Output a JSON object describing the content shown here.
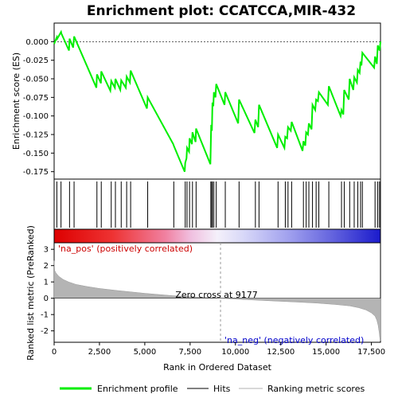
{
  "chart_data": {
    "type": "line",
    "title": "Enrichment plot: CCATCCA,MIR-432",
    "top_panel": {
      "ylabel": "Enrichment score (ES)",
      "ylim": [
        -0.185,
        0.025
      ],
      "yticks": [
        "0.000",
        "-0.025",
        "-0.050",
        "-0.075",
        "-0.100",
        "-0.125",
        "-0.150",
        "-0.175"
      ],
      "ytick_values": [
        0,
        -0.025,
        -0.05,
        -0.075,
        -0.1,
        -0.125,
        -0.15,
        -0.175
      ],
      "series": [
        {
          "name": "Enrichment profile",
          "color": "#00ee00",
          "x": [
            0,
            150,
            170,
            380,
            400,
            820,
            850,
            1050,
            1100,
            2330,
            2360,
            2580,
            2600,
            3100,
            3150,
            3350,
            3380,
            3650,
            3700,
            3950,
            4000,
            4180,
            4220,
            5120,
            5160,
            6570,
            6600,
            7200,
            7230,
            7300,
            7330,
            7440,
            7470,
            7600,
            7630,
            7800,
            7830,
            8620,
            8640,
            8660,
            8700,
            8730,
            8780,
            8810,
            8900,
            8940,
            9400,
            9440,
            10150,
            10200,
            11050,
            11100,
            11250,
            11300,
            12300,
            12350,
            12700,
            12750,
            12850,
            12900,
            13050,
            13100,
            13700,
            13750,
            13850,
            13900,
            14000,
            14050,
            14200,
            14250,
            14400,
            14450,
            14550,
            14600,
            15100,
            15150,
            15800,
            15850,
            15950,
            16000,
            16250,
            16300,
            16500,
            16550,
            16700,
            16750,
            16850,
            16900,
            16950,
            17000,
            17650,
            17700,
            17800,
            17850,
            17950,
            18000
          ],
          "y": [
            -0.003,
            0.006,
            0.004,
            0.013,
            0.011,
            -0.012,
            0.004,
            -0.008,
            0.007,
            -0.062,
            -0.044,
            -0.056,
            -0.04,
            -0.066,
            -0.053,
            -0.062,
            -0.05,
            -0.065,
            -0.052,
            -0.062,
            -0.047,
            -0.055,
            -0.039,
            -0.09,
            -0.075,
            -0.138,
            -0.14,
            -0.175,
            -0.163,
            -0.157,
            -0.143,
            -0.148,
            -0.13,
            -0.138,
            -0.122,
            -0.135,
            -0.117,
            -0.165,
            -0.139,
            -0.112,
            -0.12,
            -0.082,
            -0.087,
            -0.068,
            -0.075,
            -0.057,
            -0.085,
            -0.068,
            -0.11,
            -0.078,
            -0.123,
            -0.105,
            -0.115,
            -0.085,
            -0.143,
            -0.125,
            -0.143,
            -0.128,
            -0.13,
            -0.115,
            -0.12,
            -0.108,
            -0.147,
            -0.134,
            -0.14,
            -0.122,
            -0.125,
            -0.11,
            -0.118,
            -0.085,
            -0.092,
            -0.078,
            -0.08,
            -0.068,
            -0.085,
            -0.06,
            -0.1,
            -0.092,
            -0.098,
            -0.065,
            -0.078,
            -0.05,
            -0.065,
            -0.048,
            -0.055,
            -0.038,
            -0.042,
            -0.027,
            -0.032,
            -0.015,
            -0.035,
            -0.02,
            -0.03,
            -0.005,
            -0.012,
            0.0
          ]
        }
      ],
      "hits": [
        150,
        380,
        850,
        1100,
        2360,
        2600,
        3150,
        3380,
        3700,
        4000,
        4220,
        5160,
        6600,
        7230,
        7330,
        7470,
        7630,
        7830,
        8640,
        8700,
        8730,
        8810,
        8940,
        9440,
        10200,
        11100,
        11300,
        12350,
        12750,
        12900,
        13100,
        13750,
        13900,
        14050,
        14250,
        14450,
        14600,
        15150,
        15850,
        16000,
        16300,
        16550,
        16750,
        16900,
        17000,
        17700,
        17850,
        17950
      ]
    },
    "bottom_panel": {
      "ylabel": "Ranked list metric (PreRanked)",
      "ylim": [
        -2.7,
        3.4
      ],
      "yticks": [
        "3",
        "2",
        "1",
        "0",
        "-1",
        "-2"
      ],
      "ytick_values": [
        3,
        2,
        1,
        0,
        -1,
        -2
      ],
      "metric_curve": {
        "x": [
          0,
          30,
          100,
          250,
          500,
          800,
          1200,
          1800,
          2500,
          3500,
          5000,
          6500,
          8000,
          9177,
          10500,
          12000,
          13500,
          14500,
          15500,
          16300,
          16800,
          17200,
          17500,
          17700,
          17800,
          17870,
          17930,
          17980,
          18000
        ],
        "y": [
          2.3,
          1.7,
          1.55,
          1.35,
          1.15,
          1.0,
          0.85,
          0.72,
          0.6,
          0.47,
          0.3,
          0.16,
          0.06,
          0.0,
          -0.08,
          -0.16,
          -0.24,
          -0.3,
          -0.38,
          -0.47,
          -0.58,
          -0.72,
          -0.9,
          -1.1,
          -1.35,
          -1.65,
          -2.1,
          -2.6,
          -2.6
        ]
      },
      "zero_cross_label": "Zero cross at 9177",
      "zero_cross_x": 9177,
      "pos_label": "'na_pos' (positively correlated)",
      "neg_label": "'na_neg' (negatively correlated)",
      "pos_color": "#cc0000",
      "neg_color": "#0000cc"
    },
    "xlabel": "Rank in Ordered Dataset",
    "xlim": [
      0,
      18000
    ],
    "xticks": [
      "0",
      "2,500",
      "5,000",
      "7,500",
      "10,000",
      "12,500",
      "15,000",
      "17,500"
    ],
    "xtick_values": [
      0,
      2500,
      5000,
      7500,
      10000,
      12500,
      15000,
      17500
    ],
    "legend": {
      "placement": "bottom",
      "items": [
        {
          "label": "Enrichment profile",
          "color": "#00ee00"
        },
        {
          "label": "Hits",
          "color": "#000000"
        },
        {
          "label": "Ranking metric scores",
          "color": "#b0b0b0"
        }
      ]
    }
  }
}
